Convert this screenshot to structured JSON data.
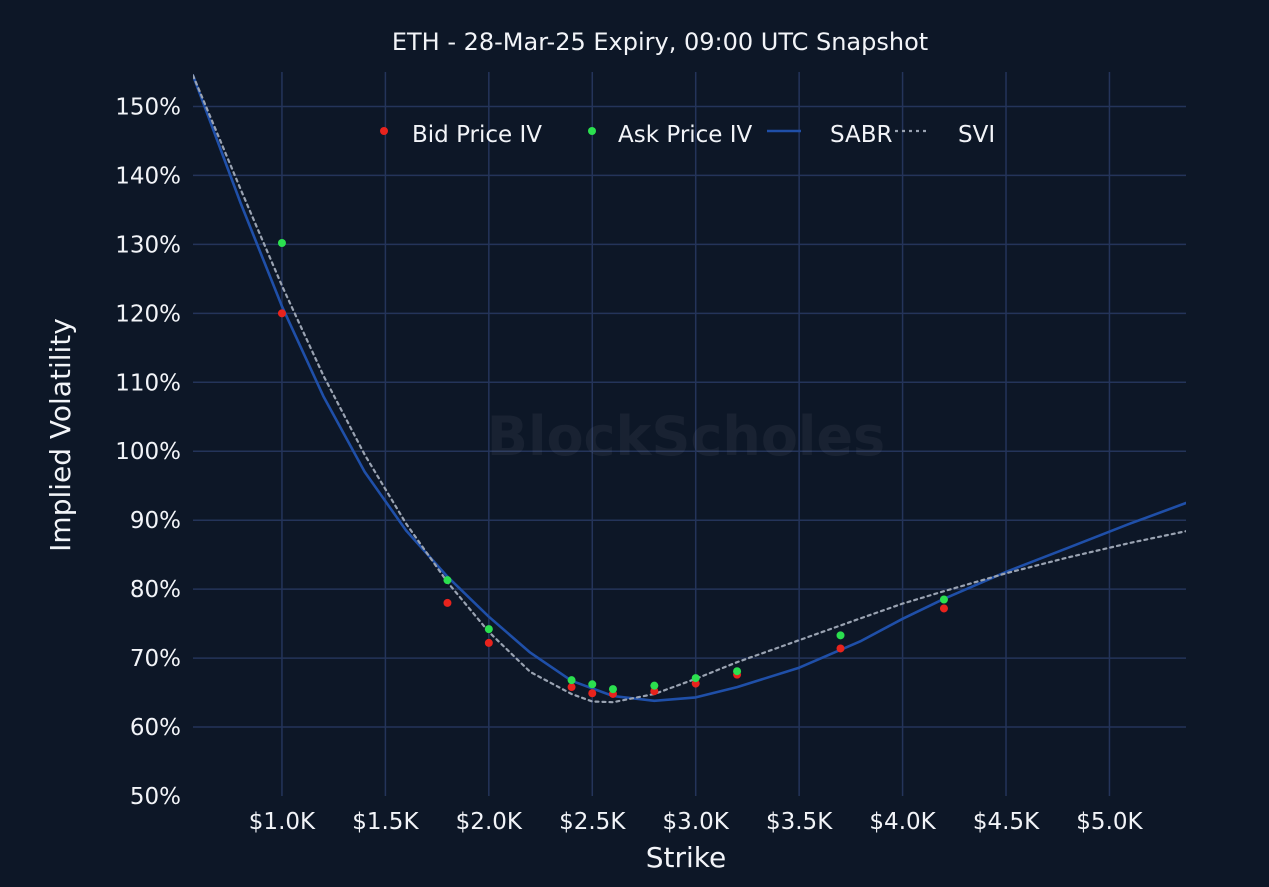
{
  "chart_data": {
    "type": "scatter",
    "title": "ETH - 28-Mar-25 Expiry, 09:00 UTC Snapshot",
    "xlabel": "Strike",
    "ylabel": "Implied Volatility",
    "xlim": [
      570,
      5370
    ],
    "ylim": [
      50,
      155
    ],
    "x_ticks": [
      1000,
      1500,
      2000,
      2500,
      3000,
      3500,
      4000,
      4500,
      5000
    ],
    "x_tick_labels": [
      "$1.0K",
      "$1.5K",
      "$2.0K",
      "$2.5K",
      "$3.0K",
      "$3.5K",
      "$4.0K",
      "$4.5K",
      "$5.0K"
    ],
    "y_ticks": [
      50,
      60,
      70,
      80,
      90,
      100,
      110,
      120,
      130,
      140,
      150
    ],
    "y_tick_labels": [
      "50%",
      "60%",
      "70%",
      "80%",
      "90%",
      "100%",
      "110%",
      "120%",
      "130%",
      "140%",
      "150%"
    ],
    "grid": true,
    "legend_position": "top-center",
    "watermark": "BlockScholes",
    "series": [
      {
        "name": "Bid Price IV",
        "kind": "markers",
        "color": "#e8231d",
        "points": [
          [
            1000,
            120.0
          ],
          [
            1800,
            78.0
          ],
          [
            2000,
            72.2
          ],
          [
            2400,
            65.8
          ],
          [
            2500,
            64.9
          ],
          [
            2600,
            64.8
          ],
          [
            2800,
            65.2
          ],
          [
            3000,
            66.3
          ],
          [
            3200,
            67.6
          ],
          [
            3700,
            71.4
          ],
          [
            4200,
            77.2
          ]
        ]
      },
      {
        "name": "Ask Price IV",
        "kind": "markers",
        "color": "#2be04f",
        "points": [
          [
            1000,
            130.2
          ],
          [
            1800,
            81.3
          ],
          [
            2000,
            74.2
          ],
          [
            2400,
            66.8
          ],
          [
            2500,
            66.2
          ],
          [
            2600,
            65.5
          ],
          [
            2800,
            66.0
          ],
          [
            3000,
            67.1
          ],
          [
            3200,
            68.1
          ],
          [
            3700,
            73.3
          ],
          [
            4200,
            78.5
          ]
        ]
      },
      {
        "name": "SABR",
        "kind": "line",
        "color": "#1f4fa8",
        "points": [
          [
            570,
            154.5
          ],
          [
            800,
            136.0
          ],
          [
            1000,
            121.0
          ],
          [
            1200,
            108.0
          ],
          [
            1400,
            97.0
          ],
          [
            1600,
            88.5
          ],
          [
            1800,
            81.8
          ],
          [
            2000,
            76.0
          ],
          [
            2200,
            70.8
          ],
          [
            2400,
            66.7
          ],
          [
            2600,
            64.5
          ],
          [
            2800,
            63.8
          ],
          [
            3000,
            64.3
          ],
          [
            3200,
            65.8
          ],
          [
            3500,
            68.6
          ],
          [
            3800,
            72.5
          ],
          [
            4000,
            75.7
          ],
          [
            4200,
            78.6
          ],
          [
            4500,
            82.5
          ],
          [
            4800,
            86.0
          ],
          [
            5100,
            89.5
          ],
          [
            5370,
            92.5
          ]
        ]
      },
      {
        "name": "SVI",
        "kind": "line",
        "dash": "dot",
        "color": "#9aa3b2",
        "points": [
          [
            570,
            154.5
          ],
          [
            800,
            138.0
          ],
          [
            1000,
            124.0
          ],
          [
            1200,
            111.0
          ],
          [
            1400,
            99.5
          ],
          [
            1600,
            89.5
          ],
          [
            1800,
            81.0
          ],
          [
            2000,
            73.8
          ],
          [
            2200,
            68.0
          ],
          [
            2400,
            64.8
          ],
          [
            2500,
            63.7
          ],
          [
            2600,
            63.6
          ],
          [
            2800,
            64.8
          ],
          [
            3000,
            67.0
          ],
          [
            3200,
            69.4
          ],
          [
            3500,
            72.6
          ],
          [
            3800,
            75.8
          ],
          [
            4000,
            77.9
          ],
          [
            4200,
            79.7
          ],
          [
            4500,
            82.3
          ],
          [
            4800,
            84.6
          ],
          [
            5100,
            86.7
          ],
          [
            5370,
            88.4
          ]
        ]
      }
    ]
  }
}
